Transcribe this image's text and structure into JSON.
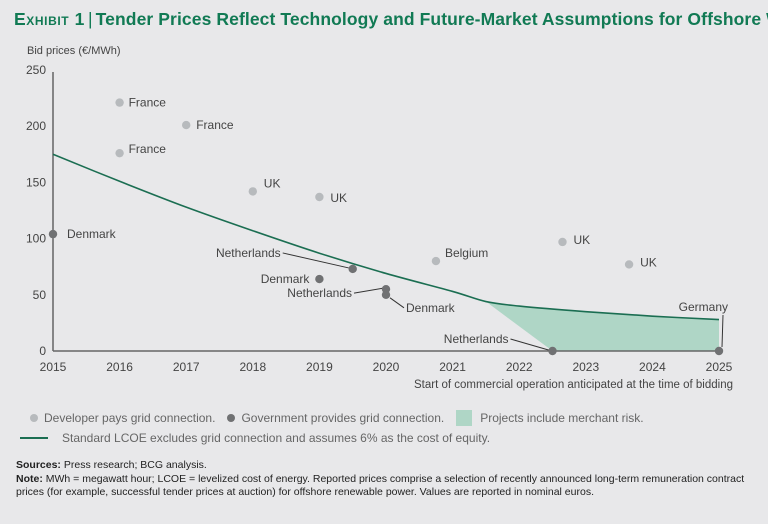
{
  "header": {
    "exhibit": "Exhibit 1",
    "separator": "|",
    "title": "Tender Prices Reflect Technology and Future-Market Assumptions for Offshore Wind"
  },
  "colors": {
    "title": "#117a54",
    "developer_dot": "#b7babd",
    "government_dot": "#707173",
    "lcoe_line": "#1b6e52",
    "merchant_fill": "#afd6c6",
    "axis": "#555555"
  },
  "chart_data": {
    "type": "scatter",
    "title": "Tender Prices Reflect Technology and Future-Market Assumptions for Offshore Wind",
    "ylabel": "Bid prices (€/MWh)",
    "xlabel": "Start of commercial operation anticipated at the time of bidding",
    "xlim": [
      2015,
      2025
    ],
    "ylim": [
      0,
      250
    ],
    "x_ticks": [
      "2015",
      "2016",
      "2017",
      "2018",
      "2019",
      "2020",
      "2021",
      "2022",
      "2023",
      "2024",
      "2025"
    ],
    "y_ticks": [
      "0",
      "50",
      "100",
      "150",
      "200",
      "250"
    ],
    "grid": false,
    "series": [
      {
        "name": "Developer pays grid connection.",
        "kind": "developer",
        "points": [
          {
            "x": 2016.0,
            "y": 221,
            "label": "France"
          },
          {
            "x": 2017.0,
            "y": 201,
            "label": "France"
          },
          {
            "x": 2016.0,
            "y": 176,
            "label": "France"
          },
          {
            "x": 2018.0,
            "y": 142,
            "label": "UK"
          },
          {
            "x": 2019.0,
            "y": 137,
            "label": "UK"
          },
          {
            "x": 2020.75,
            "y": 80,
            "label": "Belgium"
          },
          {
            "x": 2022.65,
            "y": 97,
            "label": "UK"
          },
          {
            "x": 2023.65,
            "y": 77,
            "label": "UK"
          }
        ]
      },
      {
        "name": "Government provides grid connection.",
        "kind": "government",
        "points": [
          {
            "x": 2015.0,
            "y": 104,
            "label": "Denmark"
          },
          {
            "x": 2019.5,
            "y": 73,
            "label": "Netherlands"
          },
          {
            "x": 2019.0,
            "y": 64,
            "label": "Denmark"
          },
          {
            "x": 2020.0,
            "y": 55,
            "label": "Netherlands"
          },
          {
            "x": 2020.0,
            "y": 50,
            "label": "Denmark"
          },
          {
            "x": 2022.5,
            "y": 0,
            "label": "Netherlands"
          },
          {
            "x": 2025.0,
            "y": 0,
            "label": "Germany"
          }
        ]
      },
      {
        "name": "Standard LCOE excludes grid connection and assumes 6% as the cost of equity.",
        "kind": "lcoe",
        "type": "line",
        "x": [
          2015,
          2016,
          2017,
          2018,
          2019,
          2020,
          2021,
          2021.5,
          2022,
          2023,
          2024,
          2025
        ],
        "y": [
          175,
          151,
          128,
          107,
          87,
          69,
          53,
          44,
          40,
          35,
          31,
          28
        ]
      },
      {
        "name": "Projects include merchant risk.",
        "kind": "merchant",
        "type": "area",
        "upper_x": [
          2021.5,
          2022,
          2023,
          2024,
          2025
        ],
        "upper_y": [
          44,
          40,
          35,
          31,
          28
        ],
        "lower_x": [
          2021.5,
          2022.5,
          2025
        ],
        "lower_y": [
          44,
          0,
          0
        ]
      }
    ],
    "legend": "bottom"
  },
  "legend": {
    "developer": "Developer pays grid connection.",
    "government": "Government provides grid connection.",
    "merchant": "Projects include merchant risk.",
    "lcoe": "Standard LCOE excludes grid connection and assumes 6% as the cost of equity."
  },
  "notes": {
    "sources_label": "Sources:",
    "sources": " Press research; BCG analysis.",
    "note_label": "Note:",
    "note": " MWh = megawatt hour; LCOE = levelized cost of energy. Reported prices comprise a selection of recently announced long-term remuneration contract prices (for example, successful tender prices at auction) for offshore renewable power. Values are reported in nominal euros."
  }
}
